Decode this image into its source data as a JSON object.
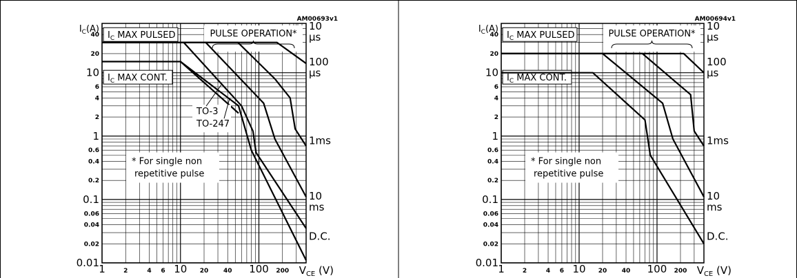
{
  "chart_data": [
    {
      "type": "line",
      "figure_code": "AM00693v1",
      "ylabel": "I_C(A)",
      "xlabel": "V_CE (V)",
      "log_x": true,
      "log_y": true,
      "xlim": [
        1,
        400
      ],
      "ylim": [
        0.01,
        60
      ],
      "x_ticks": [
        {
          "value": 1,
          "label": "1",
          "size": "big"
        },
        {
          "value": 2,
          "label": "2",
          "size": "small"
        },
        {
          "value": 4,
          "label": "4",
          "size": "small"
        },
        {
          "value": 6,
          "label": "6",
          "size": "small"
        },
        {
          "value": 10,
          "label": "10",
          "size": "big"
        },
        {
          "value": 20,
          "label": "20",
          "size": "small"
        },
        {
          "value": 40,
          "label": "40",
          "size": "small"
        },
        {
          "value": 100,
          "label": "100",
          "size": "big"
        },
        {
          "value": 200,
          "label": "200",
          "size": "small"
        }
      ],
      "y_ticks": [
        {
          "value": 40,
          "label": "40",
          "size": "small"
        },
        {
          "value": 20,
          "label": "20",
          "size": "small"
        },
        {
          "value": 10,
          "label": "10",
          "size": "big"
        },
        {
          "value": 6,
          "label": "6",
          "size": "small"
        },
        {
          "value": 4,
          "label": "4",
          "size": "small"
        },
        {
          "value": 2,
          "label": "2",
          "size": "small"
        },
        {
          "value": 1,
          "label": "1",
          "size": "big"
        },
        {
          "value": 0.6,
          "label": "0.6",
          "size": "small"
        },
        {
          "value": 0.4,
          "label": "0.4",
          "size": "small"
        },
        {
          "value": 0.2,
          "label": "0.2",
          "size": "small"
        },
        {
          "value": 0.1,
          "label": "0.1",
          "size": "big"
        },
        {
          "value": 0.06,
          "label": "0.06",
          "size": "small"
        },
        {
          "value": 0.04,
          "label": "0.04",
          "size": "small"
        },
        {
          "value": 0.02,
          "label": "0.02",
          "size": "small"
        },
        {
          "value": 0.01,
          "label": "0.01",
          "size": "big"
        }
      ],
      "annotations": {
        "ic_max_pulsed": "I_C MAX PULSED",
        "ic_max_cont": "I_C MAX CONT.",
        "pulse_operation": "PULSE OPERATION*",
        "footnote_line1": "* For single non",
        "footnote_line2": "repetitive pulse",
        "package_labels": [
          "TO-3",
          "TO-247"
        ]
      },
      "series": [
        {
          "name": "10 μs",
          "label_lines": [
            "10",
            "μs"
          ],
          "label_y": 48,
          "points": [
            [
              1,
              30
            ],
            [
              170,
              30
            ],
            [
              400,
              14
            ]
          ]
        },
        {
          "name": "100 μs",
          "label_lines": [
            "100",
            "μs"
          ],
          "label_y": 13,
          "points": [
            [
              1,
              30
            ],
            [
              54,
              30
            ],
            [
              160,
              8
            ],
            [
              250,
              4
            ],
            [
              290,
              1.3
            ],
            [
              400,
              0.7
            ]
          ]
        },
        {
          "name": "1ms",
          "label_lines": [
            "1ms"
          ],
          "label_y": 0.75,
          "points": [
            [
              1,
              30
            ],
            [
              21,
              30
            ],
            [
              115,
              3.3
            ],
            [
              160,
              0.9
            ],
            [
              400,
              0.11
            ]
          ]
        },
        {
          "name": "10 ms",
          "label_lines": [
            "10",
            "ms"
          ],
          "label_y": 0.1,
          "points": [
            [
              1,
              30
            ],
            [
              11,
              30
            ],
            [
              60,
              3
            ],
            [
              84,
              1.2
            ],
            [
              92,
              0.55
            ],
            [
              400,
              0.035
            ]
          ]
        },
        {
          "name": "D.C. (TO-3)",
          "label_lines": [
            "D.C."
          ],
          "label_y": 0.023,
          "points": [
            [
              1,
              15
            ],
            [
              10,
              15
            ],
            [
              55,
              3
            ],
            [
              80,
              0.6
            ],
            [
              400,
              0.011
            ]
          ]
        },
        {
          "name": "D.C. (TO-247)",
          "label_lines": [],
          "points": [
            [
              10,
              15
            ],
            [
              55,
              2.3
            ]
          ]
        }
      ]
    },
    {
      "type": "line",
      "figure_code": "AM00694v1",
      "ylabel": "I_C(A)",
      "xlabel": "V_CE (V)",
      "log_x": true,
      "log_y": true,
      "xlim": [
        1,
        400
      ],
      "ylim": [
        0.01,
        60
      ],
      "x_ticks": [
        {
          "value": 1,
          "label": "1",
          "size": "big"
        },
        {
          "value": 2,
          "label": "2",
          "size": "small"
        },
        {
          "value": 4,
          "label": "4",
          "size": "small"
        },
        {
          "value": 6,
          "label": "6",
          "size": "small"
        },
        {
          "value": 10,
          "label": "10",
          "size": "big"
        },
        {
          "value": 20,
          "label": "20",
          "size": "small"
        },
        {
          "value": 40,
          "label": "40",
          "size": "small"
        },
        {
          "value": 100,
          "label": "100",
          "size": "big"
        },
        {
          "value": 200,
          "label": "200",
          "size": "small"
        }
      ],
      "y_ticks": [
        {
          "value": 40,
          "label": "40",
          "size": "small"
        },
        {
          "value": 20,
          "label": "20",
          "size": "small"
        },
        {
          "value": 10,
          "label": "10",
          "size": "big"
        },
        {
          "value": 6,
          "label": "6",
          "size": "small"
        },
        {
          "value": 4,
          "label": "4",
          "size": "small"
        },
        {
          "value": 2,
          "label": "2",
          "size": "small"
        },
        {
          "value": 1,
          "label": "1",
          "size": "big"
        },
        {
          "value": 0.6,
          "label": "0.6",
          "size": "small"
        },
        {
          "value": 0.4,
          "label": "0.4",
          "size": "small"
        },
        {
          "value": 0.2,
          "label": "0.2",
          "size": "small"
        },
        {
          "value": 0.1,
          "label": "0.1",
          "size": "big"
        },
        {
          "value": 0.06,
          "label": "0.06",
          "size": "small"
        },
        {
          "value": 0.04,
          "label": "0.04",
          "size": "small"
        },
        {
          "value": 0.02,
          "label": "0.02",
          "size": "small"
        },
        {
          "value": 0.01,
          "label": "0.01",
          "size": "big"
        }
      ],
      "annotations": {
        "ic_max_pulsed": "I_C MAX PULSED",
        "ic_max_cont": "I_C MAX CONT.",
        "pulse_operation": "PULSE OPERATION*",
        "footnote_line1": "* For single non",
        "footnote_line2": "repetitive pulse",
        "package_labels": []
      },
      "series": [
        {
          "name": "10 μs",
          "label_lines": [
            "10",
            "μs"
          ],
          "label_y": 48,
          "points": [
            [
              1,
              20
            ],
            [
              220,
              20
            ],
            [
              400,
              10
            ]
          ]
        },
        {
          "name": "100 μs",
          "label_lines": [
            "100",
            "μs"
          ],
          "label_y": 13,
          "points": [
            [
              1,
              20
            ],
            [
              65,
              20
            ],
            [
              190,
              6.5
            ],
            [
              270,
              4.5
            ],
            [
              300,
              1.2
            ],
            [
              400,
              0.7
            ]
          ]
        },
        {
          "name": "1ms",
          "label_lines": [
            "1ms"
          ],
          "label_y": 0.75,
          "points": [
            [
              1,
              20
            ],
            [
              20,
              20
            ],
            [
              118,
              3.3
            ],
            [
              160,
              0.9
            ],
            [
              400,
              0.11
            ]
          ]
        },
        {
          "name": "10 ms",
          "label_lines": [
            "10",
            "ms"
          ],
          "label_y": 0.1,
          "points": [
            [
              1,
              10
            ],
            [
              15,
              10
            ],
            [
              70,
              1.8
            ],
            [
              82,
              0.5
            ],
            [
              400,
              0.02
            ]
          ]
        },
        {
          "name": "D.C.",
          "label_lines": [
            "D.C."
          ],
          "label_y": 0.023,
          "points": []
        }
      ]
    }
  ]
}
